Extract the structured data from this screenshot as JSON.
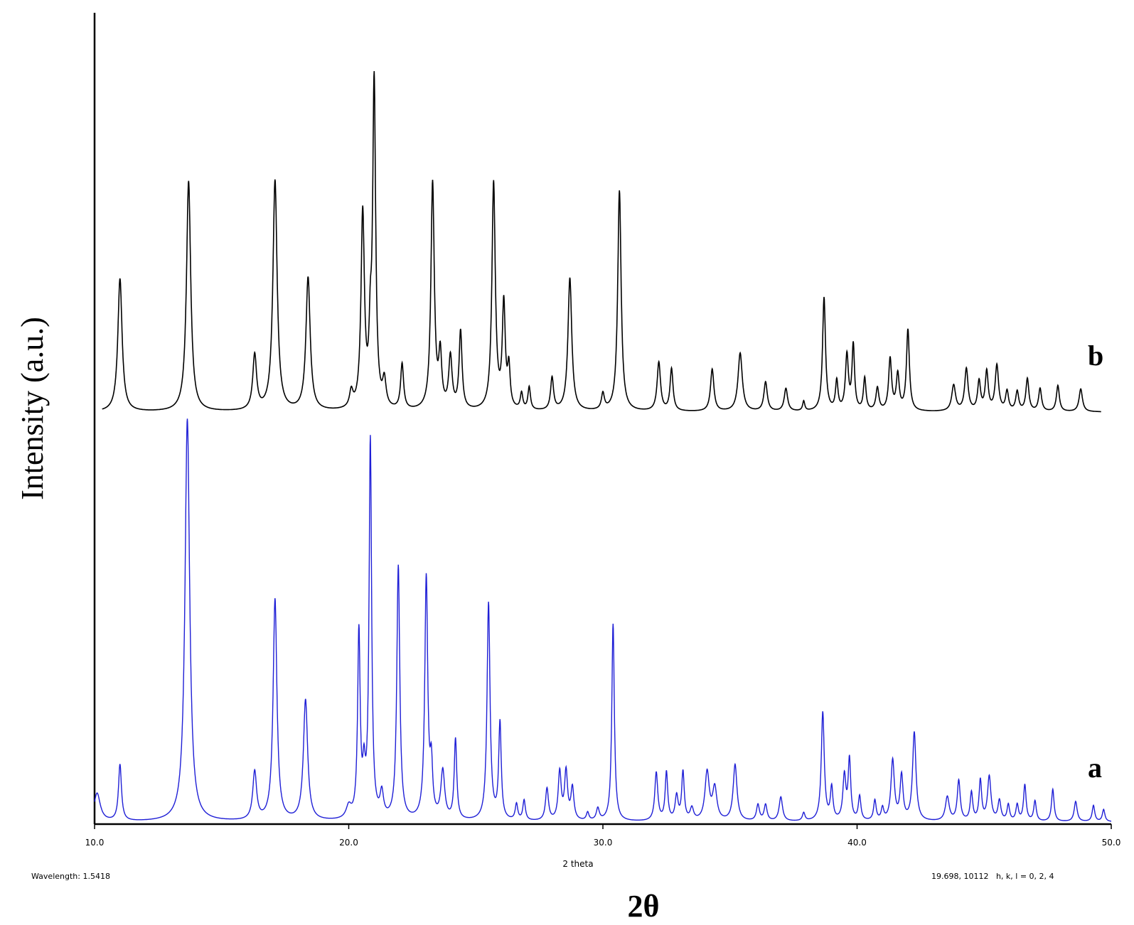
{
  "chart_data": {
    "type": "line",
    "ylabel": "Intensity (a.u.)",
    "xlabel": "2θ",
    "inner_xlabel": "2 theta",
    "xlim": [
      10.0,
      50.0
    ],
    "x_ticks": [
      "10.0",
      "20.0",
      "30.0",
      "40.0",
      "50.0"
    ],
    "x_tick_values": [
      10,
      20,
      30,
      40,
      50
    ],
    "grid": false,
    "footer": {
      "wavelength": "Wavelength: 1.5418",
      "cursor": "19.698, 10112   h, k, l = 0, 2, 4"
    },
    "series": [
      {
        "name": "a",
        "color": "#1f1fd6",
        "x_start": 10.0,
        "x_end": 50.0,
        "peaks": [
          [
            10.1,
            7,
            0.15
          ],
          [
            11.0,
            14,
            0.07
          ],
          [
            13.65,
            100,
            0.11
          ],
          [
            16.3,
            12,
            0.09
          ],
          [
            17.1,
            55,
            0.09
          ],
          [
            18.3,
            30,
            0.1
          ],
          [
            20.0,
            3,
            0.12
          ],
          [
            20.4,
            46,
            0.06
          ],
          [
            20.6,
            10,
            0.06
          ],
          [
            20.85,
            94,
            0.06
          ],
          [
            21.3,
            6,
            0.08
          ],
          [
            21.95,
            63,
            0.07
          ],
          [
            23.05,
            60,
            0.07
          ],
          [
            23.25,
            12,
            0.06
          ],
          [
            23.7,
            12,
            0.09
          ],
          [
            24.2,
            20,
            0.06
          ],
          [
            25.5,
            54,
            0.07
          ],
          [
            25.95,
            24,
            0.06
          ],
          [
            26.6,
            4,
            0.06
          ],
          [
            26.9,
            5,
            0.06
          ],
          [
            27.8,
            8,
            0.07
          ],
          [
            28.3,
            12,
            0.07
          ],
          [
            28.55,
            12,
            0.07
          ],
          [
            28.8,
            8,
            0.07
          ],
          [
            29.4,
            2,
            0.06
          ],
          [
            29.8,
            3,
            0.07
          ],
          [
            30.4,
            49,
            0.06
          ],
          [
            32.1,
            12,
            0.07
          ],
          [
            32.5,
            12,
            0.06
          ],
          [
            32.9,
            6,
            0.07
          ],
          [
            33.15,
            12,
            0.06
          ],
          [
            33.5,
            3,
            0.08
          ],
          [
            34.1,
            12,
            0.1
          ],
          [
            34.4,
            8,
            0.1
          ],
          [
            35.2,
            14,
            0.09
          ],
          [
            36.1,
            4,
            0.07
          ],
          [
            36.4,
            4,
            0.07
          ],
          [
            37.0,
            6,
            0.08
          ],
          [
            37.9,
            2,
            0.06
          ],
          [
            38.65,
            27,
            0.07
          ],
          [
            39.0,
            8,
            0.06
          ],
          [
            39.5,
            11,
            0.07
          ],
          [
            39.7,
            15,
            0.06
          ],
          [
            40.1,
            6,
            0.06
          ],
          [
            40.7,
            5,
            0.06
          ],
          [
            41.0,
            3,
            0.06
          ],
          [
            41.4,
            15,
            0.08
          ],
          [
            41.75,
            11,
            0.07
          ],
          [
            42.25,
            22,
            0.08
          ],
          [
            43.55,
            6,
            0.09
          ],
          [
            44.0,
            10,
            0.07
          ],
          [
            44.5,
            7,
            0.06
          ],
          [
            44.85,
            10,
            0.06
          ],
          [
            45.2,
            11,
            0.08
          ],
          [
            45.6,
            5,
            0.07
          ],
          [
            45.95,
            4,
            0.06
          ],
          [
            46.3,
            4,
            0.06
          ],
          [
            46.6,
            9,
            0.06
          ],
          [
            47.0,
            5,
            0.06
          ],
          [
            47.7,
            8,
            0.06
          ],
          [
            48.6,
            5,
            0.07
          ],
          [
            49.3,
            4,
            0.06
          ],
          [
            49.7,
            3,
            0.06
          ]
        ]
      },
      {
        "name": "b",
        "color": "#000000",
        "x_start": 10.3,
        "x_end": 49.6,
        "peaks": [
          [
            11.0,
            41,
            0.1
          ],
          [
            13.7,
            71,
            0.1
          ],
          [
            16.3,
            17,
            0.09
          ],
          [
            17.1,
            71,
            0.1
          ],
          [
            18.4,
            41,
            0.1
          ],
          [
            20.1,
            5,
            0.08
          ],
          [
            20.55,
            60,
            0.08
          ],
          [
            20.85,
            18,
            0.06
          ],
          [
            21.0,
            100,
            0.07
          ],
          [
            21.4,
            8,
            0.08
          ],
          [
            22.1,
            14,
            0.07
          ],
          [
            23.3,
            70,
            0.08
          ],
          [
            23.6,
            16,
            0.07
          ],
          [
            24.0,
            16,
            0.08
          ],
          [
            24.4,
            24,
            0.07
          ],
          [
            25.7,
            70,
            0.08
          ],
          [
            26.1,
            32,
            0.07
          ],
          [
            26.3,
            12,
            0.06
          ],
          [
            26.8,
            5,
            0.06
          ],
          [
            27.1,
            7,
            0.06
          ],
          [
            28.0,
            10,
            0.07
          ],
          [
            28.7,
            41,
            0.09
          ],
          [
            30.0,
            5,
            0.07
          ],
          [
            30.65,
            68,
            0.08
          ],
          [
            32.2,
            15,
            0.08
          ],
          [
            32.7,
            13,
            0.07
          ],
          [
            34.3,
            13,
            0.08
          ],
          [
            35.4,
            18,
            0.1
          ],
          [
            36.4,
            9,
            0.08
          ],
          [
            37.2,
            7,
            0.08
          ],
          [
            37.9,
            3,
            0.05
          ],
          [
            38.7,
            35,
            0.07
          ],
          [
            39.2,
            9,
            0.06
          ],
          [
            39.6,
            17,
            0.07
          ],
          [
            39.85,
            20,
            0.06
          ],
          [
            40.3,
            10,
            0.06
          ],
          [
            40.8,
            7,
            0.07
          ],
          [
            41.3,
            16,
            0.07
          ],
          [
            41.6,
            11,
            0.07
          ],
          [
            42.0,
            25,
            0.07
          ],
          [
            43.8,
            8,
            0.09
          ],
          [
            44.3,
            13,
            0.08
          ],
          [
            44.8,
            9,
            0.07
          ],
          [
            45.1,
            12,
            0.07
          ],
          [
            45.5,
            14,
            0.08
          ],
          [
            45.9,
            6,
            0.07
          ],
          [
            46.3,
            6,
            0.07
          ],
          [
            46.7,
            10,
            0.07
          ],
          [
            47.2,
            7,
            0.07
          ],
          [
            47.9,
            8,
            0.07
          ],
          [
            48.8,
            7,
            0.08
          ]
        ]
      }
    ]
  }
}
